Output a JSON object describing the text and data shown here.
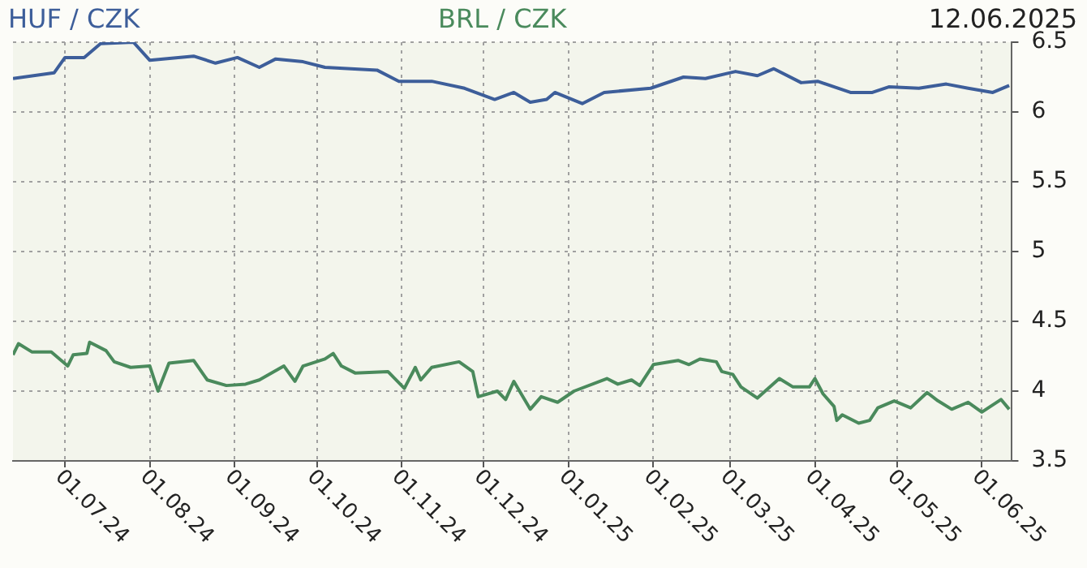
{
  "chart_data": {
    "type": "line",
    "annotations": [
      "12.06.2025"
    ],
    "series": [
      {
        "name": "HUF / CZK",
        "color": "#3d5e9a",
        "x": [
          "2024-06-12",
          "2024-06-27",
          "2024-07-01",
          "2024-07-08",
          "2024-07-14",
          "2024-07-26",
          "2024-08-01",
          "2024-08-17",
          "2024-08-25",
          "2024-09-02",
          "2024-09-10",
          "2024-09-16",
          "2024-09-26",
          "2024-10-04",
          "2024-10-23",
          "2024-10-31",
          "2024-11-12",
          "2024-11-24",
          "2024-12-05",
          "2024-12-12",
          "2024-12-18",
          "2024-12-24",
          "2024-12-27",
          "2025-01-06",
          "2025-01-14",
          "2025-01-31",
          "2025-02-12",
          "2025-02-20",
          "2025-03-03",
          "2025-03-11",
          "2025-03-17",
          "2025-03-27",
          "2025-04-02",
          "2025-04-14",
          "2025-04-22",
          "2025-04-28",
          "2025-05-09",
          "2025-05-19",
          "2025-05-27",
          "2025-06-05",
          "2025-06-11"
        ],
        "values": [
          6.24,
          6.28,
          6.39,
          6.39,
          6.49,
          6.5,
          6.37,
          6.4,
          6.35,
          6.39,
          6.32,
          6.38,
          6.36,
          6.32,
          6.3,
          6.22,
          6.22,
          6.17,
          6.09,
          6.14,
          6.07,
          6.09,
          6.14,
          6.06,
          6.14,
          6.17,
          6.25,
          6.24,
          6.29,
          6.26,
          6.31,
          6.21,
          6.22,
          6.14,
          6.14,
          6.18,
          6.17,
          6.2,
          6.17,
          6.14,
          6.19
        ]
      },
      {
        "name": "BRL / CZK",
        "color": "#4a8a5c",
        "x": [
          "2024-06-12",
          "2024-06-14",
          "2024-06-19",
          "2024-06-26",
          "2024-07-02",
          "2024-07-04",
          "2024-07-09",
          "2024-07-10",
          "2024-07-16",
          "2024-07-19",
          "2024-07-25",
          "2024-08-01",
          "2024-08-04",
          "2024-08-08",
          "2024-08-17",
          "2024-08-22",
          "2024-08-29",
          "2024-09-05",
          "2024-09-10",
          "2024-09-19",
          "2024-09-23",
          "2024-09-26",
          "2024-10-04",
          "2024-10-07",
          "2024-10-10",
          "2024-10-15",
          "2024-10-27",
          "2024-11-02",
          "2024-11-06",
          "2024-11-08",
          "2024-11-12",
          "2024-11-22",
          "2024-11-27",
          "2024-11-29",
          "2024-12-06",
          "2024-12-09",
          "2024-12-12",
          "2024-12-18",
          "2024-12-22",
          "2024-12-28",
          "2025-01-03",
          "2025-01-15",
          "2025-01-19",
          "2025-01-24",
          "2025-01-27",
          "2025-02-01",
          "2025-02-10",
          "2025-02-14",
          "2025-02-18",
          "2025-02-24",
          "2025-02-26",
          "2025-03-02",
          "2025-03-05",
          "2025-03-11",
          "2025-03-19",
          "2025-03-24",
          "2025-03-30",
          "2025-04-01",
          "2025-04-04",
          "2025-04-08",
          "2025-04-09",
          "2025-04-11",
          "2025-04-17",
          "2025-04-21",
          "2025-04-24",
          "2025-04-30",
          "2025-05-06",
          "2025-05-12",
          "2025-05-16",
          "2025-05-21",
          "2025-05-27",
          "2025-06-01",
          "2025-06-08",
          "2025-06-11"
        ],
        "values": [
          4.26,
          4.34,
          4.28,
          4.28,
          4.18,
          4.26,
          4.27,
          4.35,
          4.29,
          4.21,
          4.17,
          4.18,
          4.0,
          4.2,
          4.22,
          4.08,
          4.04,
          4.05,
          4.08,
          4.18,
          4.07,
          4.18,
          4.23,
          4.27,
          4.18,
          4.13,
          4.14,
          4.02,
          4.17,
          4.08,
          4.17,
          4.21,
          4.14,
          3.96,
          4.0,
          3.94,
          4.07,
          3.87,
          3.96,
          3.92,
          4.0,
          4.09,
          4.05,
          4.08,
          4.04,
          4.19,
          4.22,
          4.19,
          4.23,
          4.21,
          4.14,
          4.12,
          4.03,
          3.95,
          4.09,
          4.03,
          4.03,
          4.09,
          3.98,
          3.89,
          3.79,
          3.83,
          3.77,
          3.79,
          3.88,
          3.93,
          3.88,
          3.99,
          3.93,
          3.87,
          3.92,
          3.85,
          3.94,
          3.87
        ]
      }
    ],
    "xlim": [
      "2024-06-12",
      "2025-06-12"
    ],
    "xticks": [
      {
        "value": "2024-07-01",
        "label": "01.07.24"
      },
      {
        "value": "2024-08-01",
        "label": "01.08.24"
      },
      {
        "value": "2024-09-01",
        "label": "01.09.24"
      },
      {
        "value": "2024-10-01",
        "label": "01.10.24"
      },
      {
        "value": "2024-11-01",
        "label": "01.11.24"
      },
      {
        "value": "2024-12-01",
        "label": "01.12.24"
      },
      {
        "value": "2025-01-01",
        "label": "01.01.25"
      },
      {
        "value": "2025-02-01",
        "label": "01.02.25"
      },
      {
        "value": "2025-03-01",
        "label": "01.03.25"
      },
      {
        "value": "2025-04-01",
        "label": "01.04.25"
      },
      {
        "value": "2025-05-01",
        "label": "01.05.25"
      },
      {
        "value": "2025-06-01",
        "label": "01.06.25"
      }
    ],
    "ylim": [
      3.5,
      6.5
    ],
    "yticks": [
      3.5,
      4,
      4.5,
      5,
      5.5,
      6,
      6.5
    ],
    "grid": true,
    "legend": "top",
    "marker": "none",
    "line_style": "solid"
  }
}
